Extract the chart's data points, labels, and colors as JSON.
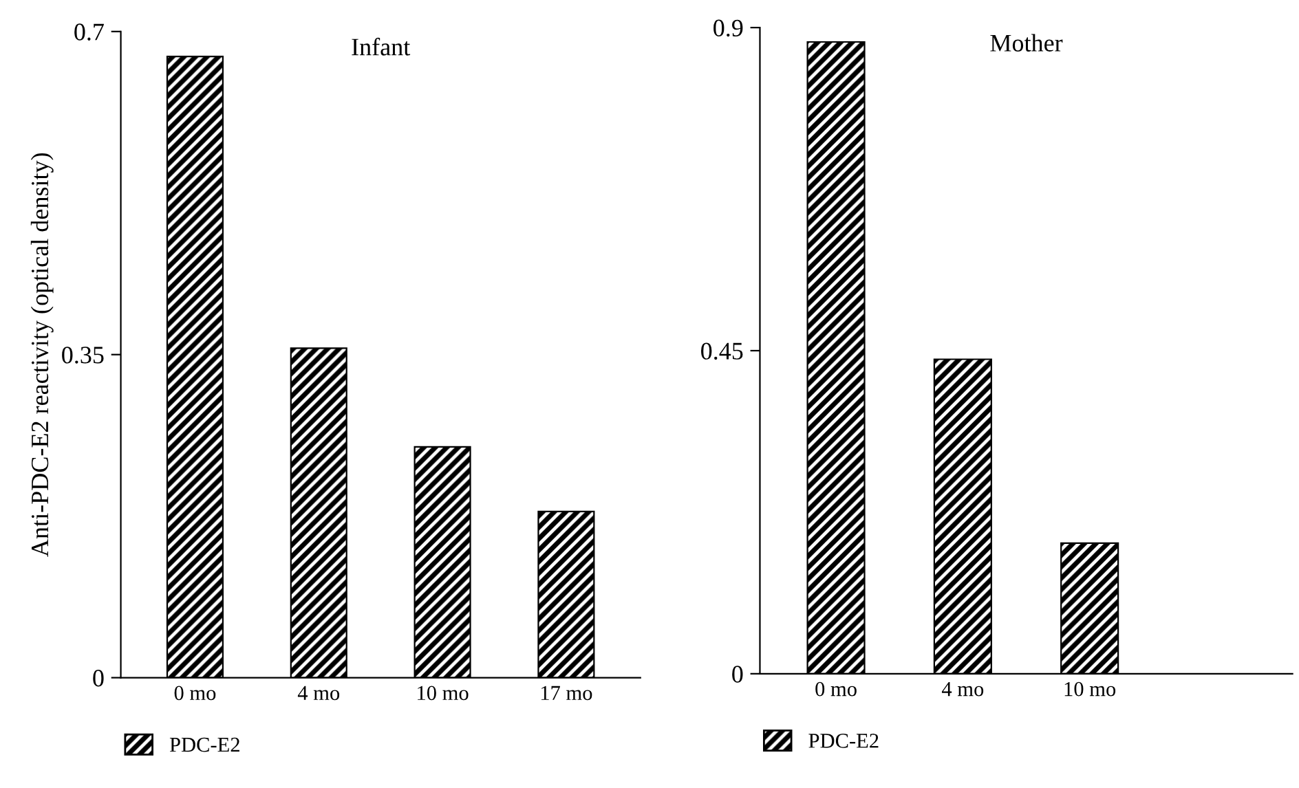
{
  "chart_data": [
    {
      "type": "bar",
      "title": "Infant",
      "ylabel": "Anti-PDC-E2 reactivity (optical density)",
      "categories": [
        "0 mo",
        "4 mo",
        "10 mo",
        "17 mo"
      ],
      "series": [
        {
          "name": "PDC-E2",
          "color": "#000000",
          "values": [
            0.673,
            0.357,
            0.25,
            0.18
          ]
        }
      ],
      "ylim": [
        0,
        0.7
      ],
      "yticks": [
        0,
        0.35,
        0.7
      ],
      "grid": false,
      "legend": "bottom left"
    },
    {
      "type": "bar",
      "title": "Mother",
      "categories": [
        "0 mo",
        "4 mo",
        "10 mo",
        null
      ],
      "series": [
        {
          "name": "PDC-E2",
          "color": "#000000",
          "values": [
            0.88,
            0.438,
            0.182,
            null
          ]
        }
      ],
      "ylim": [
        0,
        0.9
      ],
      "yticks": [
        0,
        0.45,
        0.9
      ],
      "grid": false,
      "legend": "bottom left"
    }
  ]
}
